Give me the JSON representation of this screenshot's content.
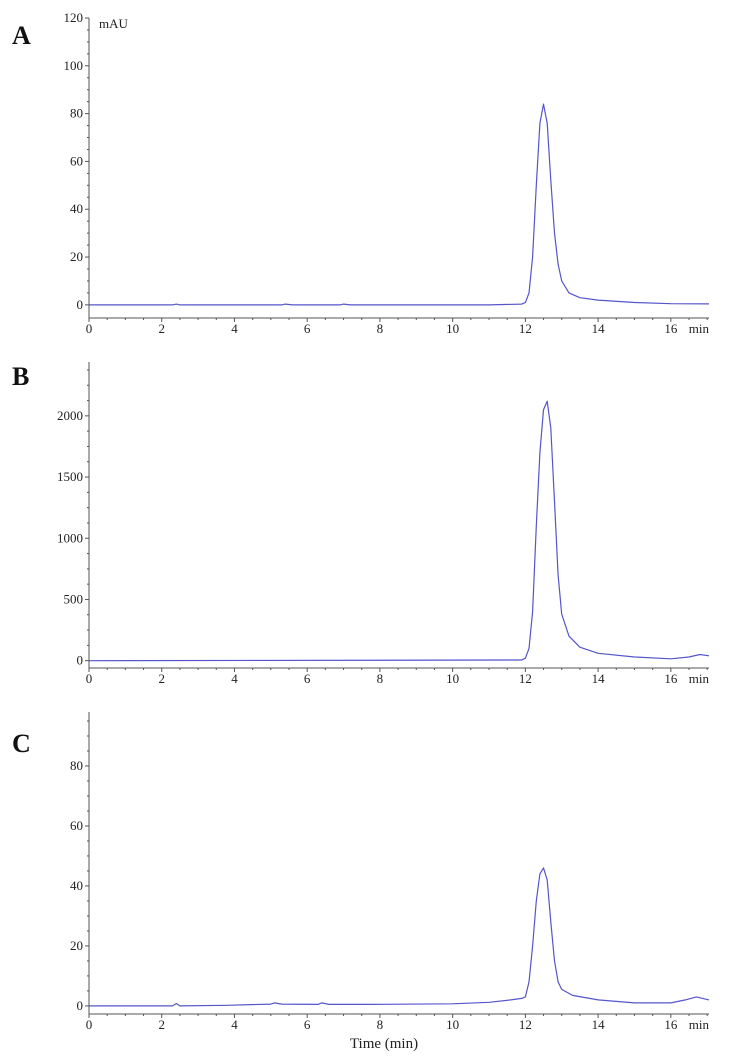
{
  "chart_data": [
    {
      "panel_label": "A",
      "type": "line",
      "ylabel": "mAU",
      "x_unit": "min",
      "xlim": [
        0,
        17.05
      ],
      "ylim": [
        -5.5,
        120
      ],
      "xticks": [
        0,
        2,
        4,
        6,
        8,
        10,
        12,
        14,
        16
      ],
      "yticks": [
        0,
        20,
        40,
        60,
        80,
        100,
        120
      ],
      "grid": false,
      "color": "#5555cc",
      "points": [
        [
          0,
          0
        ],
        [
          2.3,
          0
        ],
        [
          2.4,
          0.3
        ],
        [
          2.5,
          0
        ],
        [
          5.3,
          0
        ],
        [
          5.4,
          0.3
        ],
        [
          5.6,
          0
        ],
        [
          6.9,
          0
        ],
        [
          7.0,
          0.3
        ],
        [
          7.2,
          0
        ],
        [
          11,
          0
        ],
        [
          11.9,
          0.3
        ],
        [
          12.0,
          1
        ],
        [
          12.1,
          5
        ],
        [
          12.2,
          20
        ],
        [
          12.3,
          50
        ],
        [
          12.4,
          76
        ],
        [
          12.5,
          84
        ],
        [
          12.6,
          76
        ],
        [
          12.7,
          52
        ],
        [
          12.8,
          30
        ],
        [
          12.9,
          17
        ],
        [
          13.0,
          10
        ],
        [
          13.2,
          5
        ],
        [
          13.5,
          3
        ],
        [
          14,
          2
        ],
        [
          15,
          1
        ],
        [
          16,
          0.5
        ],
        [
          17.05,
          0.4
        ]
      ]
    },
    {
      "panel_label": "B",
      "type": "line",
      "ylabel": "",
      "x_unit": "min",
      "xlim": [
        0,
        17.05
      ],
      "ylim": [
        -60,
        2440
      ],
      "xticks": [
        0,
        2,
        4,
        6,
        8,
        10,
        12,
        14,
        16
      ],
      "yticks": [
        0,
        500,
        1000,
        1500,
        2000
      ],
      "grid": false,
      "color": "#5555cc",
      "points": [
        [
          0,
          0
        ],
        [
          11.9,
          5
        ],
        [
          12.0,
          20
        ],
        [
          12.1,
          100
        ],
        [
          12.2,
          400
        ],
        [
          12.3,
          1100
        ],
        [
          12.4,
          1700
        ],
        [
          12.5,
          2050
        ],
        [
          12.6,
          2120
        ],
        [
          12.7,
          1900
        ],
        [
          12.8,
          1300
        ],
        [
          12.9,
          700
        ],
        [
          13.0,
          380
        ],
        [
          13.2,
          200
        ],
        [
          13.5,
          110
        ],
        [
          14,
          60
        ],
        [
          15,
          30
        ],
        [
          16,
          15
        ],
        [
          16.5,
          30
        ],
        [
          16.8,
          50
        ],
        [
          17.05,
          40
        ]
      ]
    },
    {
      "panel_label": "C",
      "type": "line",
      "ylabel": "",
      "xlabel": "Time (min)",
      "x_unit": "min",
      "xlim": [
        0,
        17.05
      ],
      "ylim": [
        -2.7,
        98
      ],
      "xticks": [
        0,
        2,
        4,
        6,
        8,
        10,
        12,
        14,
        16
      ],
      "yticks": [
        0,
        20,
        40,
        60,
        80
      ],
      "grid": false,
      "color": "#5555cc",
      "points": [
        [
          0,
          0
        ],
        [
          2.3,
          0
        ],
        [
          2.4,
          0.8
        ],
        [
          2.5,
          0
        ],
        [
          3.8,
          0.2
        ],
        [
          5.0,
          0.6
        ],
        [
          5.1,
          1
        ],
        [
          5.3,
          0.6
        ],
        [
          6.3,
          0.5
        ],
        [
          6.4,
          1
        ],
        [
          6.6,
          0.5
        ],
        [
          7.8,
          0.5
        ],
        [
          10,
          0.7
        ],
        [
          11,
          1.2
        ],
        [
          11.6,
          2
        ],
        [
          11.9,
          2.5
        ],
        [
          12,
          3
        ],
        [
          12.1,
          8
        ],
        [
          12.2,
          20
        ],
        [
          12.3,
          35
        ],
        [
          12.4,
          44
        ],
        [
          12.5,
          46
        ],
        [
          12.6,
          42
        ],
        [
          12.7,
          28
        ],
        [
          12.8,
          15
        ],
        [
          12.9,
          8
        ],
        [
          13,
          5.5
        ],
        [
          13.3,
          3.5
        ],
        [
          14,
          2
        ],
        [
          15,
          1
        ],
        [
          16,
          1
        ],
        [
          16.4,
          2
        ],
        [
          16.7,
          3
        ],
        [
          17.05,
          2
        ]
      ]
    }
  ]
}
